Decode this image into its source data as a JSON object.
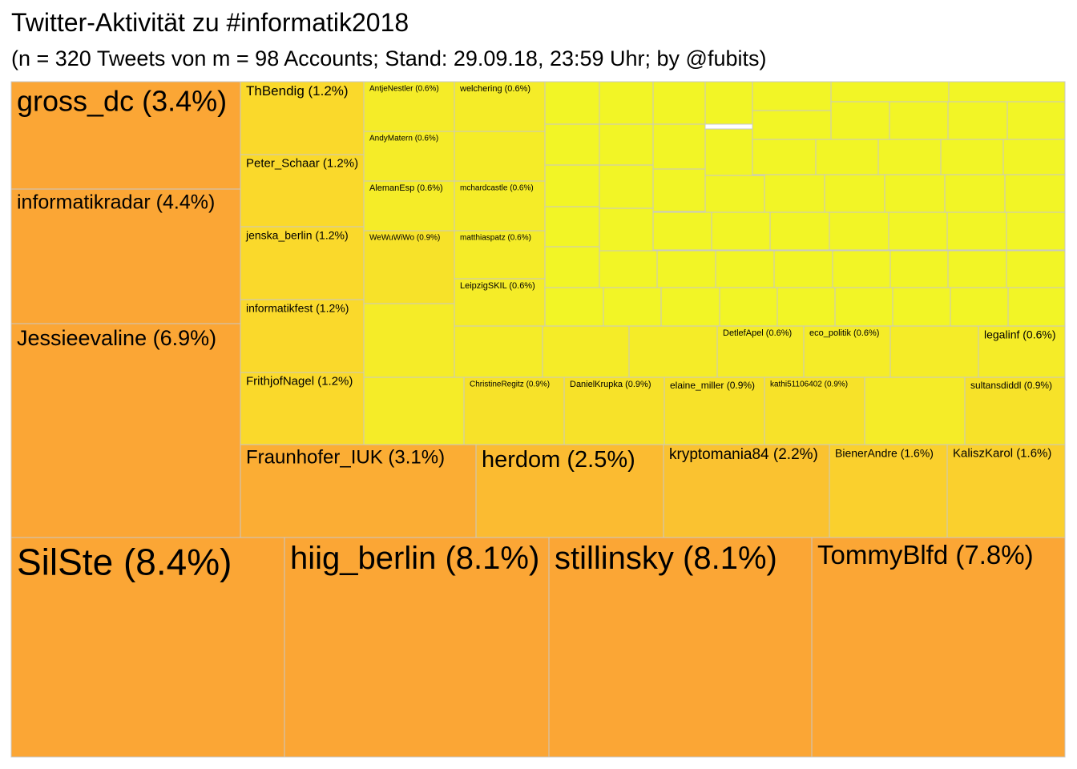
{
  "chart_data": {
    "type": "treemap",
    "title": "Twitter-Aktivität zu #informatik2018",
    "subtitle": "(n = 320 Tweets von m = 98 Accounts; Stand: 29.09.18, 23:59 Uhr; by @fubits)",
    "color_scale": {
      "low": "#f2f526",
      "mid": "#fad92b",
      "high": "#fba635"
    },
    "unit": "%",
    "items": [
      {
        "label": "SilSte",
        "value": 8.4,
        "display": "(8.4%)"
      },
      {
        "label": "hiig_berlin",
        "value": 8.1,
        "display": "(8.1%)"
      },
      {
        "label": "stillinsky",
        "value": 8.1,
        "display": "(8.1%)"
      },
      {
        "label": "TommyBlfd",
        "value": 7.8,
        "display": "(7.8%)"
      },
      {
        "label": "Jessieevaline",
        "value": 6.9,
        "display": "(6.9%)"
      },
      {
        "label": "informatikradar",
        "value": 4.4,
        "display": "(4.4%)"
      },
      {
        "label": "gross_dc",
        "value": 3.4,
        "display": "(3.4%)"
      },
      {
        "label": "Fraunhofer_IUK",
        "value": 3.1,
        "display": "(3.1%)"
      },
      {
        "label": "herdom",
        "value": 2.5,
        "display": "(2.5%)"
      },
      {
        "label": "kryptomania84",
        "value": 2.2,
        "display": "(2.2%)"
      },
      {
        "label": "BienerAndre",
        "value": 1.6,
        "display": "(1.6%)"
      },
      {
        "label": "KaliszKarol",
        "value": 1.6,
        "display": "(1.6%)"
      },
      {
        "label": "ThBendig",
        "value": 1.2,
        "display": "(1.2%)"
      },
      {
        "label": "Peter_Schaar",
        "value": 1.2,
        "display": "(1.2%)"
      },
      {
        "label": "jenska_berlin",
        "value": 1.2,
        "display": "(1.2%)"
      },
      {
        "label": "informatikfest",
        "value": 1.2,
        "display": "(1.2%)"
      },
      {
        "label": "FrithjofNagel",
        "value": 1.2,
        "display": "(1.2%)"
      },
      {
        "label": "WeWuWiWo",
        "value": 0.9,
        "display": "(0.9%)"
      },
      {
        "label": "ChristineRegitz",
        "value": 0.9,
        "display": "(0.9%)"
      },
      {
        "label": "DanielKrupka",
        "value": 0.9,
        "display": "(0.9%)"
      },
      {
        "label": "elaine_miller",
        "value": 0.9,
        "display": "(0.9%)"
      },
      {
        "label": "kathi51106402",
        "value": 0.9,
        "display": "(0.9%)"
      },
      {
        "label": "sultansdiddl",
        "value": 0.9,
        "display": "(0.9%)"
      },
      {
        "label": "AntjeNestler",
        "value": 0.6,
        "display": "(0.6%)"
      },
      {
        "label": "welchering",
        "value": 0.6,
        "display": "(0.6%)"
      },
      {
        "label": "AndyMatern",
        "value": 0.6,
        "display": "(0.6%)"
      },
      {
        "label": "AlemanEsp",
        "value": 0.6,
        "display": "(0.6%)"
      },
      {
        "label": "mchardcastle",
        "value": 0.6,
        "display": "(0.6%)"
      },
      {
        "label": "matthiaspatz",
        "value": 0.6,
        "display": "(0.6%)"
      },
      {
        "label": "LeipzigSKIL",
        "value": 0.6,
        "display": "(0.6%)"
      },
      {
        "label": "DetlefApel",
        "value": 0.6,
        "display": "(0.6%)"
      },
      {
        "label": "eco_politik",
        "value": 0.6,
        "display": "(0.6%)"
      },
      {
        "label": "legalinf",
        "value": 0.6,
        "display": "(0.6%)"
      }
    ]
  }
}
